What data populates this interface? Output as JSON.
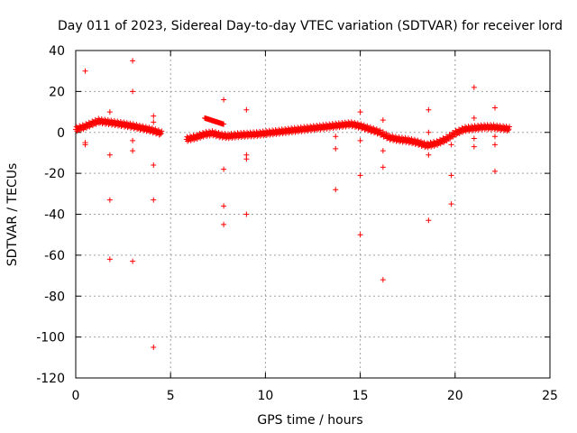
{
  "chart_data": {
    "type": "scatter",
    "title": "Day 011 of 2023, Sidereal Day-to-day VTEC variation (SDTVAR) for receiver lord",
    "xlabel": "GPS time / hours",
    "ylabel": "SDTVAR / TECUs",
    "xlim": [
      0,
      25
    ],
    "ylim": [
      -120,
      40
    ],
    "xticks": [
      0,
      5,
      10,
      15,
      20,
      25
    ],
    "yticks": [
      -120,
      -100,
      -80,
      -60,
      -40,
      -20,
      0,
      20,
      40
    ],
    "grid": true,
    "marker": "+",
    "color": "#ff0000",
    "series": [
      {
        "name": "SDTVAR",
        "trend": [
          [
            0.0,
            1.5
          ],
          [
            0.4,
            2.5
          ],
          [
            0.8,
            4.0
          ],
          [
            1.2,
            5.5
          ],
          [
            1.6,
            5.0
          ],
          [
            2.0,
            4.5
          ],
          [
            2.5,
            3.8
          ],
          [
            3.0,
            3.0
          ],
          [
            3.5,
            2.0
          ],
          [
            4.0,
            1.0
          ],
          [
            4.5,
            -0.5
          ],
          [
            5.8,
            -3.5
          ],
          [
            6.3,
            -2.5
          ],
          [
            6.8,
            -1.0
          ],
          [
            7.2,
            -0.5
          ],
          [
            7.6,
            -1.5
          ],
          [
            8.0,
            -2.0
          ],
          [
            8.5,
            -1.5
          ],
          [
            9.0,
            -1.2
          ],
          [
            9.5,
            -1.0
          ],
          [
            10.0,
            -0.5
          ],
          [
            10.5,
            0.0
          ],
          [
            11.0,
            0.5
          ],
          [
            11.5,
            1.0
          ],
          [
            12.0,
            1.5
          ],
          [
            12.5,
            2.0
          ],
          [
            13.0,
            2.5
          ],
          [
            13.5,
            3.0
          ],
          [
            14.0,
            3.5
          ],
          [
            14.5,
            4.0
          ],
          [
            15.0,
            3.0
          ],
          [
            15.5,
            1.5
          ],
          [
            16.0,
            0.0
          ],
          [
            16.5,
            -2.5
          ],
          [
            17.0,
            -3.5
          ],
          [
            17.5,
            -4.0
          ],
          [
            18.0,
            -5.0
          ],
          [
            18.5,
            -6.5
          ],
          [
            19.0,
            -5.5
          ],
          [
            19.5,
            -3.5
          ],
          [
            20.0,
            -0.5
          ],
          [
            20.5,
            1.5
          ],
          [
            21.0,
            2.0
          ],
          [
            21.5,
            2.5
          ],
          [
            22.0,
            2.5
          ],
          [
            22.5,
            2.0
          ],
          [
            22.9,
            1.5
          ]
        ],
        "bands": [
          {
            "x": [
              6.8,
              7.8
            ],
            "from": 7.0,
            "to": 4.0
          }
        ],
        "outliers": [
          [
            0.5,
            30
          ],
          [
            0.5,
            -5
          ],
          [
            0.5,
            -6
          ],
          [
            1.8,
            10
          ],
          [
            1.8,
            -11
          ],
          [
            1.8,
            -33
          ],
          [
            1.8,
            -62
          ],
          [
            3.0,
            35
          ],
          [
            3.0,
            20
          ],
          [
            3.0,
            -4
          ],
          [
            3.0,
            -9
          ],
          [
            3.0,
            -63
          ],
          [
            4.1,
            8
          ],
          [
            4.1,
            5
          ],
          [
            4.1,
            -16
          ],
          [
            4.1,
            -33
          ],
          [
            4.1,
            -105
          ],
          [
            7.8,
            16
          ],
          [
            7.8,
            -18
          ],
          [
            7.8,
            -36
          ],
          [
            7.8,
            -45
          ],
          [
            9.0,
            11
          ],
          [
            9.0,
            -11
          ],
          [
            9.0,
            -13
          ],
          [
            9.0,
            -40
          ],
          [
            13.7,
            -2
          ],
          [
            13.7,
            -8
          ],
          [
            13.7,
            -28
          ],
          [
            15.0,
            10
          ],
          [
            15.0,
            -4
          ],
          [
            15.0,
            -21
          ],
          [
            15.0,
            -50
          ],
          [
            16.2,
            6
          ],
          [
            16.2,
            -9
          ],
          [
            16.2,
            -17
          ],
          [
            16.2,
            -72
          ],
          [
            18.6,
            11
          ],
          [
            18.6,
            0
          ],
          [
            18.6,
            -11
          ],
          [
            18.6,
            -43
          ],
          [
            19.8,
            -6
          ],
          [
            19.8,
            -21
          ],
          [
            19.8,
            -35
          ],
          [
            21.0,
            22
          ],
          [
            21.0,
            7
          ],
          [
            21.0,
            -3
          ],
          [
            21.0,
            -7
          ],
          [
            22.1,
            12
          ],
          [
            22.1,
            -2
          ],
          [
            22.1,
            -6
          ],
          [
            22.1,
            -19
          ]
        ]
      }
    ]
  }
}
